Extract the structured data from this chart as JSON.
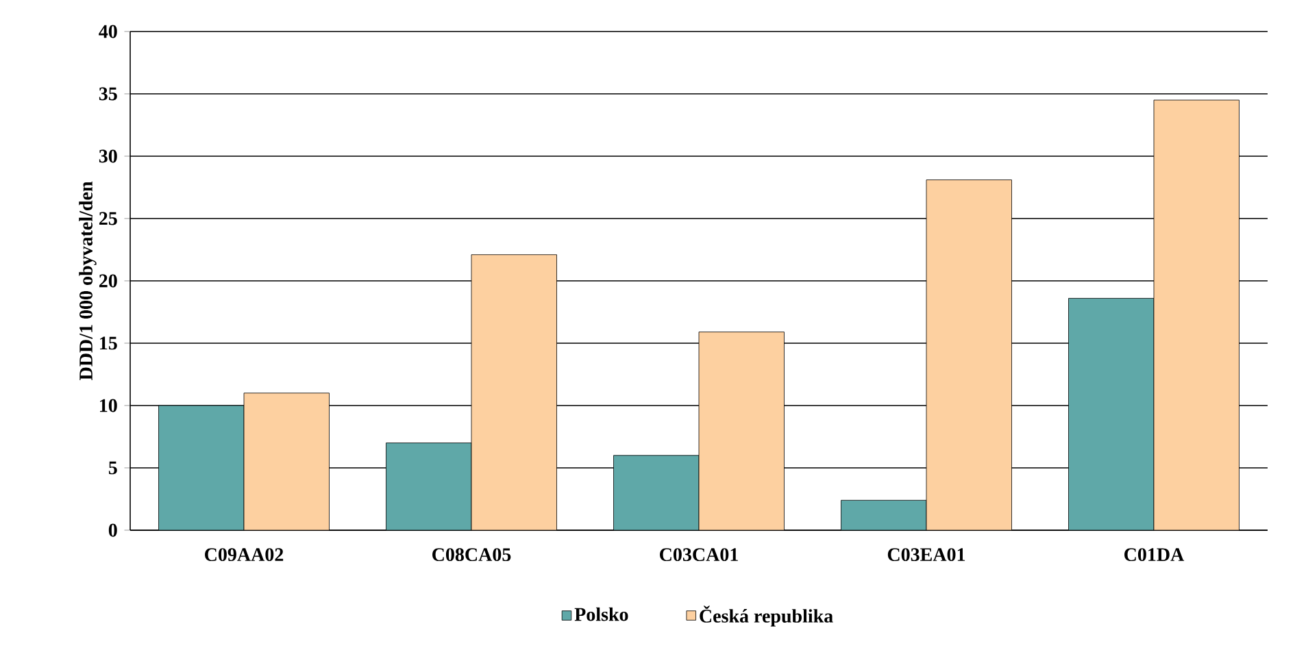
{
  "chart_data": {
    "type": "bar",
    "ylabel": "DDD/1 000 obyvatel/den",
    "categories": [
      "C09AA02",
      "C08CA05",
      "C03CA01",
      "C03EA01",
      "C01DA"
    ],
    "series": [
      {
        "name": "Polsko",
        "color": "#5fa8a8",
        "values": [
          10,
          7,
          6,
          2.4,
          18.6
        ]
      },
      {
        "name": "Česká republika",
        "color": "#fdd0a0",
        "values": [
          11,
          22.1,
          15.9,
          28.1,
          34.5
        ]
      }
    ],
    "ylim": [
      0,
      40
    ],
    "yticks": [
      0,
      5,
      10,
      15,
      20,
      25,
      30,
      35,
      40
    ],
    "grid": "y",
    "legend": "bottom"
  }
}
